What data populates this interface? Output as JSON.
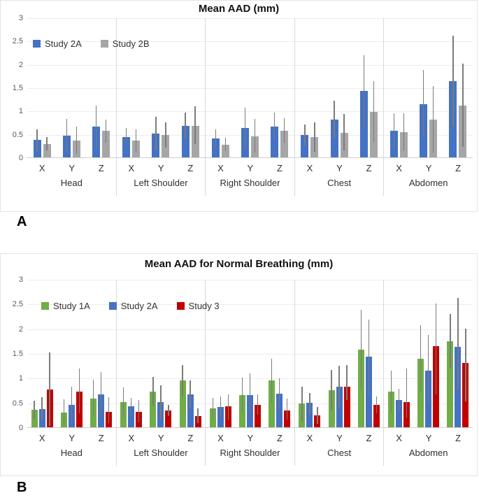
{
  "figure": {
    "panels": [
      {
        "label": "A"
      },
      {
        "label": "B"
      }
    ]
  },
  "style": {
    "gridline_color": "#ececec",
    "separator_color": "#d9d9d9",
    "axis_line_color": "#cfcfcf",
    "error_bar_color": "#7b7b7b",
    "tick_label_color": "#5a5a5a"
  },
  "chart_data": [
    {
      "type": "bar",
      "variant": "grouped-bar-with-error-bars",
      "title": "Mean AAD (mm)",
      "ylim": [
        0,
        3
      ],
      "ytick_step": 0.5,
      "ytick_labels": [
        "0",
        "0.5",
        "1",
        "1.5",
        "2",
        "2.5",
        "3"
      ],
      "grid": true,
      "legend_position": "top-left-inside",
      "categories": [
        "Head",
        "Left Shoulder",
        "Right Shoulder",
        "Chest",
        "Abdomen"
      ],
      "subcategories": [
        "X",
        "Y",
        "Z"
      ],
      "series": [
        {
          "name": "Study 2A",
          "color": "#4472C4",
          "values": [
            [
              0.37,
              0.47,
              0.67
            ],
            [
              0.44,
              0.52,
              0.68
            ],
            [
              0.41,
              0.63,
              0.66
            ],
            [
              0.48,
              0.82,
              1.43
            ],
            [
              0.57,
              1.15,
              1.65
            ]
          ],
          "err_low": [
            [
              0.13,
              0.1,
              0.22
            ],
            [
              0.26,
              0.17,
              0.41
            ],
            [
              0.21,
              0.18,
              0.36
            ],
            [
              0.26,
              0.42,
              0.66
            ],
            [
              0.2,
              0.42,
              0.67
            ]
          ],
          "err_high": [
            [
              0.61,
              0.83,
              1.12
            ],
            [
              0.63,
              0.87,
              0.96
            ],
            [
              0.6,
              1.07,
              0.96
            ],
            [
              0.71,
              1.22,
              2.2
            ],
            [
              0.95,
              1.88,
              2.62
            ]
          ]
        },
        {
          "name": "Study 2B",
          "color": "#A6A6A6",
          "values": [
            [
              0.28,
              0.36,
              0.57
            ],
            [
              0.36,
              0.48,
              0.68
            ],
            [
              0.27,
              0.46,
              0.58
            ],
            [
              0.44,
              0.53,
              0.98
            ],
            [
              0.55,
              0.81,
              1.12
            ]
          ],
          "err_low": [
            [
              0.15,
              0.08,
              0.32
            ],
            [
              0.1,
              0.21,
              0.28
            ],
            [
              0.13,
              0.11,
              0.32
            ],
            [
              0.12,
              0.15,
              0.33
            ],
            [
              0.15,
              0.1,
              0.22
            ]
          ],
          "err_high": [
            [
              0.44,
              0.67,
              0.82
            ],
            [
              0.61,
              0.75,
              1.1
            ],
            [
              0.42,
              0.83,
              0.85
            ],
            [
              0.75,
              0.94,
              1.65
            ],
            [
              0.95,
              1.54,
              2.02
            ]
          ]
        }
      ]
    },
    {
      "type": "bar",
      "variant": "grouped-bar-with-error-bars",
      "title": "Mean AAD for Normal Breathing (mm)",
      "ylim": [
        0,
        3
      ],
      "ytick_step": 0.5,
      "ytick_labels": [
        "0",
        "0.5",
        "1",
        "1.5",
        "2",
        "2.5",
        "3"
      ],
      "grid": true,
      "legend_position": "top-left-inside",
      "categories": [
        "Head",
        "Left Shoulder",
        "Right Shoulder",
        "Chest",
        "Abdomen"
      ],
      "subcategories": [
        "X",
        "Y",
        "Z"
      ],
      "series": [
        {
          "name": "Study 1A",
          "color": "#70AD47",
          "values": [
            [
              0.35,
              0.3,
              0.59
            ],
            [
              0.51,
              0.72,
              0.95
            ],
            [
              0.38,
              0.65,
              0.95
            ],
            [
              0.48,
              0.76,
              1.58
            ],
            [
              0.72,
              1.4,
              1.75
            ]
          ],
          "err_low": [
            [
              0.17,
              0.05,
              0.21
            ],
            [
              0.2,
              0.43,
              0.63
            ],
            [
              0.17,
              0.33,
              0.51
            ],
            [
              0.11,
              0.34,
              0.78
            ],
            [
              0.29,
              0.72,
              1.2
            ]
          ],
          "err_high": [
            [
              0.54,
              0.57,
              0.96
            ],
            [
              0.81,
              1.02,
              1.27
            ],
            [
              0.6,
              1.01,
              1.39
            ],
            [
              0.82,
              1.16,
              2.39
            ],
            [
              1.15,
              2.08,
              2.31
            ]
          ]
        },
        {
          "name": "Study 2A",
          "color": "#4472C4",
          "values": [
            [
              0.37,
              0.46,
              0.67
            ],
            [
              0.42,
              0.51,
              0.67
            ],
            [
              0.41,
              0.65,
              0.68
            ],
            [
              0.5,
              0.82,
              1.44
            ],
            [
              0.55,
              1.15,
              1.63
            ]
          ],
          "err_low": [
            [
              0.13,
              0.1,
              0.22
            ],
            [
              0.25,
              0.16,
              0.38
            ],
            [
              0.2,
              0.33,
              0.37
            ],
            [
              0.25,
              0.4,
              0.66
            ],
            [
              0.32,
              0.48,
              0.75
            ]
          ],
          "err_high": [
            [
              0.61,
              0.83,
              1.13
            ],
            [
              0.6,
              0.86,
              0.96
            ],
            [
              0.62,
              1.09,
              0.99
            ],
            [
              0.69,
              1.25,
              2.19
            ],
            [
              0.78,
              1.88,
              2.63
            ]
          ]
        },
        {
          "name": "Study 3",
          "color": "#C00000",
          "values": [
            [
              0.77,
              0.73,
              0.32
            ],
            [
              0.32,
              0.34,
              0.23
            ],
            [
              0.42,
              0.46,
              0.34
            ],
            [
              0.24,
              0.83,
              0.45
            ],
            [
              0.51,
              1.65,
              1.31
            ]
          ],
          "err_low": [
            [
              0.03,
              0.29,
              0.08
            ],
            [
              0.1,
              0.23,
              0.08
            ],
            [
              0.16,
              0.25,
              0.16
            ],
            [
              0.07,
              0.55,
              0.28
            ],
            [
              0.18,
              0.67,
              0.53
            ]
          ],
          "err_high": [
            [
              1.52,
              1.19,
              0.61
            ],
            [
              0.55,
              0.45,
              0.38
            ],
            [
              0.67,
              0.67,
              0.59
            ],
            [
              0.41,
              1.26,
              0.62
            ],
            [
              1.19,
              2.51,
              2.01
            ]
          ]
        }
      ]
    }
  ]
}
